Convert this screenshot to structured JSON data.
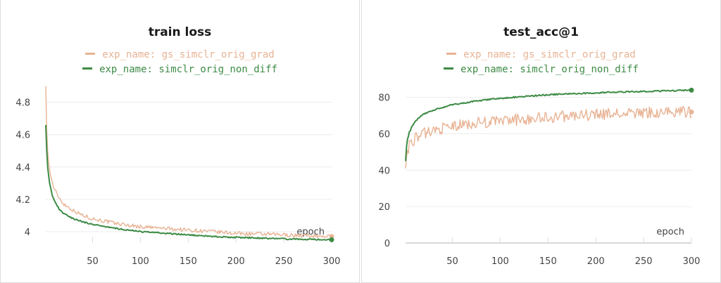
{
  "chart_data": [
    {
      "type": "line",
      "title": "train loss",
      "xlabel": "epoch",
      "ylabel": "",
      "xlim": [
        1,
        300
      ],
      "ylim": [
        3.93,
        4.92
      ],
      "xticks": [
        50,
        100,
        150,
        200,
        250,
        300
      ],
      "yticks": [
        4,
        4.2,
        4.4,
        4.6,
        4.8
      ],
      "ytick_labels": [
        "4",
        "4.2",
        "4.4",
        "4.6",
        "4.8"
      ],
      "grid": true,
      "legend_position": "top-center",
      "series": [
        {
          "name": "exp_name: gs_simclr_orig_grad",
          "color": "#e8b394",
          "x": [
            1,
            2,
            3,
            5,
            8,
            10,
            15,
            20,
            30,
            40,
            50,
            75,
            100,
            125,
            150,
            175,
            200,
            225,
            250,
            275,
            300
          ],
          "values": [
            4.9,
            4.62,
            4.5,
            4.38,
            4.3,
            4.26,
            4.21,
            4.17,
            4.13,
            4.1,
            4.08,
            4.05,
            4.03,
            4.02,
            4.01,
            4.0,
            3.99,
            3.985,
            3.98,
            3.975,
            3.97
          ]
        },
        {
          "name": "exp_name: simclr_orig_non_diff",
          "color": "#3d8b45",
          "x": [
            1,
            2,
            3,
            5,
            8,
            10,
            15,
            20,
            30,
            40,
            50,
            75,
            100,
            125,
            150,
            175,
            200,
            225,
            250,
            275,
            300
          ],
          "values": [
            4.66,
            4.5,
            4.4,
            4.3,
            4.22,
            4.19,
            4.14,
            4.11,
            4.08,
            4.06,
            4.045,
            4.02,
            4.0,
            3.99,
            3.98,
            3.97,
            3.965,
            3.96,
            3.955,
            3.952,
            3.95
          ]
        }
      ]
    },
    {
      "type": "line",
      "title": "test_acc@1",
      "xlabel": "epoch",
      "ylabel": "",
      "xlim": [
        1,
        300
      ],
      "ylim": [
        0,
        88
      ],
      "xticks": [
        50,
        100,
        150,
        200,
        250,
        300
      ],
      "yticks": [
        0,
        20,
        40,
        60,
        80
      ],
      "ytick_labels": [
        "0",
        "20",
        "40",
        "60",
        "80"
      ],
      "grid": true,
      "legend_position": "top-center",
      "series": [
        {
          "name": "exp_name: gs_simclr_orig_grad",
          "color": "#e8b394",
          "x": [
            1,
            2,
            3,
            5,
            8,
            10,
            15,
            20,
            30,
            40,
            50,
            75,
            100,
            125,
            150,
            175,
            200,
            225,
            250,
            275,
            300
          ],
          "values": [
            41,
            47,
            51,
            54,
            56,
            57,
            59,
            60,
            62,
            63,
            64,
            66,
            67,
            68,
            69,
            70,
            70.5,
            71,
            71.5,
            72,
            72
          ]
        },
        {
          "name": "exp_name: simclr_orig_non_diff",
          "color": "#3d8b45",
          "x": [
            1,
            2,
            3,
            5,
            8,
            10,
            15,
            20,
            30,
            40,
            50,
            75,
            100,
            125,
            150,
            175,
            200,
            225,
            250,
            275,
            300
          ],
          "values": [
            45,
            53,
            57,
            61,
            64,
            66,
            69,
            71,
            73,
            74.5,
            76,
            78,
            79.5,
            80.5,
            81.5,
            82,
            82.5,
            83,
            83.3,
            83.6,
            84
          ]
        }
      ]
    }
  ]
}
